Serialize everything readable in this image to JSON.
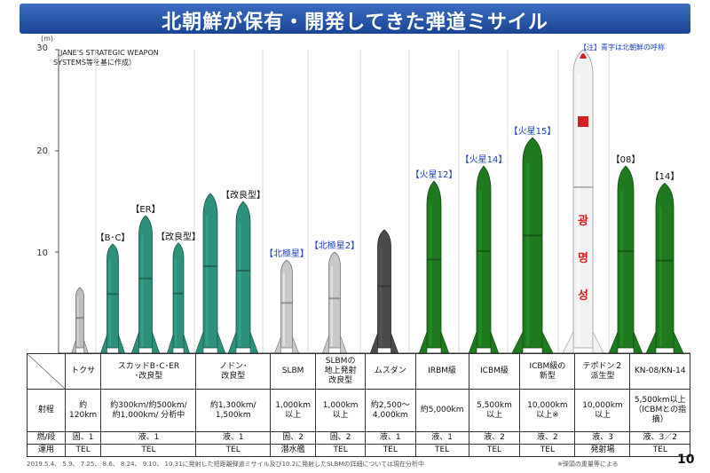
{
  "title": "北朝鮮が保有・開発してきた弾道ミサイル",
  "axis": {
    "unit": "(m)",
    "ticks": [
      30,
      20,
      10
    ],
    "ymin": 0,
    "ymax": 30
  },
  "source_note": "（JANE'S STRATEGIC WEAPON\nSYSTEMS等を基に作成）",
  "legend_note": "【注】青字は北朝鮮の呼称",
  "missiles": [
    {
      "id": "tochsa",
      "height": 6.5,
      "color": "#bdbdbd",
      "labels": []
    },
    {
      "id": "scud-bc",
      "height": 10.8,
      "color": "#2e8f7a",
      "labels": [
        {
          "text": "【B･C】",
          "color": "dark"
        }
      ]
    },
    {
      "id": "scud-er",
      "height": 13.6,
      "color": "#2e8f7a",
      "labels": [
        {
          "text": "【ER】",
          "color": "dark"
        }
      ]
    },
    {
      "id": "scud-kai",
      "height": 10.9,
      "color": "#2e8f7a",
      "labels": [
        {
          "text": "【改良型】",
          "color": "dark"
        }
      ]
    },
    {
      "id": "nodong",
      "height": 15.8,
      "color": "#2e8f7a",
      "labels": []
    },
    {
      "id": "nodong-kai",
      "height": 15.0,
      "color": "#2e8f7a",
      "labels": [
        {
          "text": "【改良型】",
          "color": "dark"
        }
      ]
    },
    {
      "id": "slbm",
      "height": 9.2,
      "color": "#c8c8c8",
      "labels": [
        {
          "text": "【北極星】",
          "color": "blue"
        }
      ]
    },
    {
      "id": "slbm-land",
      "height": 10.0,
      "color": "#c8c8c8",
      "labels": [
        {
          "text": "【北極星2】",
          "color": "blue"
        }
      ]
    },
    {
      "id": "musudan",
      "height": 12.2,
      "color": "#4a4a4a",
      "labels": []
    },
    {
      "id": "hwasong12",
      "height": 17.0,
      "color": "#1f7a1f",
      "labels": [
        {
          "text": "【火星12】",
          "color": "blue"
        }
      ]
    },
    {
      "id": "hwasong14",
      "height": 18.5,
      "color": "#1f7a1f",
      "labels": [
        {
          "text": "【火星14】",
          "color": "blue"
        }
      ]
    },
    {
      "id": "hwasong15",
      "height": 21.3,
      "color": "#1f7a1f",
      "labels": [
        {
          "text": "【火星15】",
          "color": "blue"
        }
      ]
    },
    {
      "id": "taepodong2",
      "height": 30.0,
      "color": "#f2f2f2",
      "labels": []
    },
    {
      "id": "kn08",
      "height": 18.5,
      "color": "#1f7a1f",
      "labels": [
        {
          "text": "【08】",
          "color": "dark"
        }
      ]
    },
    {
      "id": "kn14",
      "height": 16.8,
      "color": "#1f7a1f",
      "labels": [
        {
          "text": "【14】",
          "color": "dark"
        }
      ]
    }
  ],
  "taepodong_text": [
    "광",
    "명",
    "성"
  ],
  "table": {
    "header": [
      "トクサ",
      "スカッドB･C･ER\n･改良型",
      "ノドン･\n改良型",
      "SLBM",
      "SLBMの\n地上発射\n改良型",
      "ムスダン",
      "IRBM級",
      "ICBM級",
      "ICBM級の\n新型",
      "テポドン２\n派生型",
      "KN-08/KN-14"
    ],
    "rows": [
      {
        "label": "射程",
        "cells": [
          "約\n120km",
          "約300km/約500km/\n約1,000km/ 分析中",
          "約1,300km/\n1,500km",
          "1,000km\n以上",
          "1,000km\n以上",
          "約2,500～\n4,000km",
          "約5,000km",
          "5,500km\n以上",
          "10,000km\n以上※",
          "10,000km\n以上",
          "5,500km以上\n（ICBMとの指\n摘）"
        ]
      },
      {
        "label": "燃/段",
        "cells": [
          "固、1",
          "液、1",
          "液、1",
          "固、2",
          "固、2",
          "液、1",
          "液、1",
          "液、2",
          "液、2",
          "液、3",
          "液、3／2"
        ]
      },
      {
        "label": "運用",
        "cells": [
          "TEL",
          "TEL",
          "TEL",
          "潜水艦",
          "TEL",
          "TEL",
          "TEL",
          "TEL",
          "TEL",
          "発射場",
          "TEL"
        ]
      }
    ]
  },
  "footer": "2019.5.4、 5.9、 7.25、 8.6、 8.24、 9.10、 10.31に発射した短距離弾道ミサイル及び10.2に発射したSLBMの詳細については現在分析中",
  "footnote": "※弾頭の重量等による",
  "page_number": "10"
}
